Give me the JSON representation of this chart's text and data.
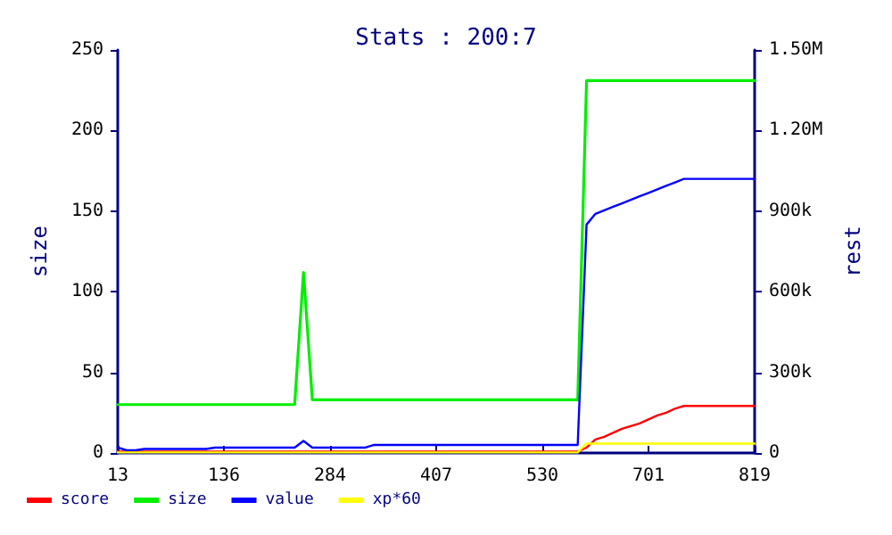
{
  "chart_data": {
    "type": "line",
    "title": "Stats : 200:7",
    "ylabel": "size",
    "y2label": "rest",
    "categories": [
      "13",
      null,
      null,
      null,
      null,
      null,
      null,
      null,
      null,
      null,
      null,
      null,
      "136",
      null,
      null,
      null,
      null,
      null,
      null,
      null,
      null,
      null,
      null,
      null,
      "284",
      null,
      null,
      null,
      null,
      null,
      null,
      null,
      null,
      null,
      null,
      null,
      "407",
      null,
      null,
      null,
      null,
      null,
      null,
      null,
      null,
      null,
      null,
      null,
      "530",
      null,
      null,
      null,
      null,
      null,
      null,
      null,
      null,
      null,
      null,
      null,
      "701",
      null,
      null,
      null,
      null,
      null,
      null,
      null,
      null,
      null,
      null,
      null,
      "819"
    ],
    "ylim": [
      0,
      250
    ],
    "yticks": [
      0,
      50,
      100,
      150,
      200,
      250
    ],
    "y2lim": [
      0,
      1500000
    ],
    "y2ticks": [
      0,
      {
        "value": 300000,
        "label": "300k"
      },
      {
        "value": 600000,
        "label": "600k"
      },
      {
        "value": 900000,
        "label": "900k"
      },
      {
        "value": 1200000,
        "label": "1.20M"
      },
      {
        "value": 1500000,
        "label": "1.50M"
      }
    ],
    "grid": false,
    "legend": "bottom left",
    "marker": "none",
    "series": [
      {
        "name": "score",
        "color": "#ff0000",
        "axis": "y2",
        "values": [
          5000,
          5000,
          5000,
          5000,
          5000,
          5000,
          5000,
          5000,
          5000,
          5000,
          5000,
          5000,
          5000,
          5000,
          5000,
          5000,
          5000,
          5000,
          5000,
          5000,
          5000,
          5000,
          5000,
          5000,
          5000,
          5000,
          5000,
          5000,
          5000,
          5000,
          5000,
          5000,
          5000,
          5000,
          5000,
          5000,
          5000,
          5000,
          5000,
          5000,
          5000,
          5000,
          5000,
          5000,
          5000,
          5000,
          5000,
          5000,
          5000,
          5000,
          5000,
          5000,
          5000,
          20000,
          50000,
          60000,
          75000,
          90000,
          100000,
          110000,
          125000,
          140000,
          150000,
          165000,
          175000,
          175000,
          175000,
          175000,
          175000,
          175000,
          175000,
          175000,
          175000
        ]
      },
      {
        "name": "size",
        "color": "#00ee00",
        "axis": "y",
        "values": [
          30,
          30,
          30,
          30,
          30,
          30,
          30,
          30,
          30,
          30,
          30,
          30,
          30,
          30,
          30,
          30,
          30,
          30,
          30,
          30,
          30,
          112,
          33,
          33,
          33,
          33,
          33,
          33,
          33,
          33,
          33,
          33,
          33,
          33,
          33,
          33,
          33,
          33,
          33,
          33,
          33,
          33,
          33,
          33,
          33,
          33,
          33,
          33,
          33,
          33,
          33,
          33,
          33,
          231,
          231,
          231,
          231,
          231,
          231,
          231,
          231,
          231,
          231,
          231,
          231,
          231,
          231,
          231,
          231,
          231,
          231,
          231,
          231
        ]
      },
      {
        "name": "value",
        "color": "#0000ff",
        "axis": "y2",
        "values": [
          20000,
          10000,
          10000,
          15000,
          15000,
          15000,
          15000,
          15000,
          15000,
          15000,
          15000,
          20000,
          20000,
          20000,
          20000,
          20000,
          20000,
          20000,
          20000,
          20000,
          20000,
          45000,
          20000,
          20000,
          20000,
          20000,
          20000,
          20000,
          20000,
          30000,
          30000,
          30000,
          30000,
          30000,
          30000,
          30000,
          30000,
          30000,
          30000,
          30000,
          30000,
          30000,
          30000,
          30000,
          30000,
          30000,
          30000,
          30000,
          30000,
          30000,
          30000,
          30000,
          30000,
          850000,
          890000,
          903000,
          916000,
          929000,
          942000,
          955000,
          968000,
          981000,
          994000,
          1007000,
          1020000,
          1020000,
          1020000,
          1020000,
          1020000,
          1020000,
          1020000,
          1020000,
          1020000
        ]
      },
      {
        "name": "xp*60",
        "color": "#ffff00",
        "axis": "y2",
        "values": [
          2000,
          2000,
          2000,
          2000,
          2000,
          2000,
          2000,
          2000,
          2000,
          2000,
          2000,
          2000,
          2000,
          2000,
          2000,
          2000,
          2000,
          2000,
          2000,
          2000,
          2000,
          2000,
          2000,
          2000,
          2000,
          2000,
          2000,
          2000,
          2000,
          2000,
          2000,
          2000,
          2000,
          2000,
          2000,
          2000,
          2000,
          2000,
          2000,
          2000,
          2000,
          2000,
          2000,
          2000,
          2000,
          2000,
          2000,
          2000,
          2000,
          2000,
          2000,
          2000,
          2000,
          35000,
          35000,
          35000,
          35000,
          35000,
          35000,
          35000,
          35000,
          35000,
          35000,
          35000,
          35000,
          35000,
          35000,
          35000,
          35000,
          35000,
          35000,
          35000,
          35000
        ]
      }
    ]
  }
}
